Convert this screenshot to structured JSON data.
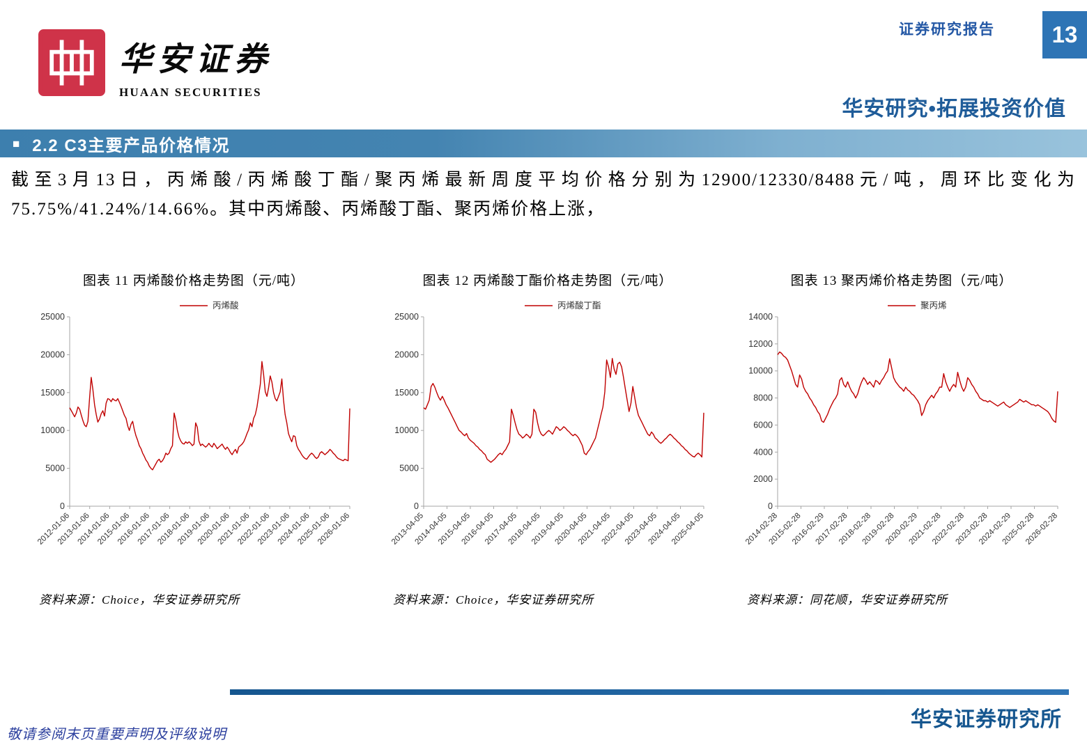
{
  "header": {
    "logo_cn": "华安证券",
    "logo_en": "HUAAN SECURITIES",
    "report_type": "证券研究报告",
    "page_number": "13",
    "tagline": "华安研究•拓展投资价值"
  },
  "section": {
    "bullet": "■",
    "title": "2.2 C3主要产品价格情况"
  },
  "body": {
    "paragraph": "截至3月13日，丙烯酸/丙烯酸丁酯/聚丙烯最新周度平均价格分别为12900/12330/8488元/吨，周环比变化为75.75%/41.24%/14.66%。其中丙烯酸、丙烯酸丁酯、聚丙烯价格上涨，"
  },
  "figures": [
    {
      "title": "图表 11 丙烯酸价格走势图（元/吨）",
      "source": "资料来源：Choice，华安证券研究所"
    },
    {
      "title": "图表 12 丙烯酸丁酯价格走势图（元/吨）",
      "source": "资料来源：Choice，华安证券研究所"
    },
    {
      "title": "图表 13 聚丙烯价格走势图（元/吨）",
      "source": "资料来源：同花顺，华安证券研究所"
    }
  ],
  "footer": {
    "disclaimer": "敬请参阅末页重要声明及评级说明",
    "institute": "华安证券研究所"
  },
  "colors": {
    "line_red": "#c00000",
    "logo_red": "#cf3349",
    "page_number_bg": "#2e74b5",
    "title_blue": "#1f5c99",
    "bar_blue_dark": "#3d7fae",
    "bar_blue_light": "#99c3dc"
  },
  "chart_data": [
    {
      "type": "line",
      "title": "图表 11 丙烯酸价格走势图（元/吨）",
      "legend": "丙烯酸",
      "color": "#c00000",
      "xlabel": "",
      "ylabel": "",
      "ylim": [
        0,
        25000
      ],
      "yticks": [
        0,
        5000,
        10000,
        15000,
        20000,
        25000
      ],
      "xticklabels": [
        "2012-01-06",
        "2013-01-06",
        "2014-01-06",
        "2015-01-06",
        "2016-01-06",
        "2017-01-06",
        "2018-01-06",
        "2019-01-06",
        "2020-01-06",
        "2021-01-06",
        "2022-01-06",
        "2023-01-06",
        "2024-01-06",
        "2025-01-06",
        "2026-01-06"
      ],
      "values": [
        13000,
        12600,
        12200,
        11800,
        12300,
        13100,
        12800,
        12000,
        11300,
        10700,
        10500,
        11200,
        14200,
        17000,
        15400,
        13400,
        12100,
        11100,
        11500,
        12200,
        12600,
        11900,
        13600,
        14200,
        14100,
        13800,
        14200,
        14000,
        13900,
        14200,
        13700,
        13200,
        12600,
        12000,
        11600,
        10600,
        10000,
        10800,
        11200,
        10100,
        9300,
        8700,
        8000,
        7600,
        7000,
        6600,
        6100,
        5800,
        5300,
        5000,
        4800,
        5200,
        5600,
        6000,
        6200,
        5800,
        6000,
        6400,
        7000,
        6800,
        7000,
        7600,
        8000,
        12300,
        11400,
        10000,
        9100,
        8600,
        8300,
        8200,
        8500,
        8300,
        8500,
        8300,
        8000,
        8200,
        11000,
        10400,
        8600,
        8000,
        8200,
        8000,
        7800,
        8000,
        8300,
        8000,
        7800,
        8300,
        8000,
        7600,
        7800,
        8000,
        8200,
        7800,
        7500,
        7800,
        7500,
        7100,
        6800,
        7200,
        7500,
        7000,
        7800,
        8000,
        8200,
        8500,
        9000,
        9600,
        10100,
        11000,
        10500,
        11600,
        12100,
        13100,
        14600,
        16100,
        19100,
        17400,
        15100,
        14500,
        15600,
        17200,
        16400,
        15000,
        14200,
        13900,
        14500,
        15100,
        16800,
        14000,
        12100,
        11000,
        9600,
        9000,
        8500,
        9300,
        9200,
        8000,
        7500,
        7200,
        6800,
        6500,
        6300,
        6200,
        6500,
        6800,
        7000,
        6800,
        6500,
        6300,
        6500,
        7000,
        7200,
        7000,
        6800,
        7000,
        7200,
        7500,
        7300,
        7000,
        6800,
        6500,
        6300,
        6200,
        6100,
        6000,
        6200,
        6100,
        6000,
        12900
      ]
    },
    {
      "type": "line",
      "title": "图表 12 丙烯酸丁酯价格走势图（元/吨）",
      "legend": "丙烯酸丁酯",
      "color": "#c00000",
      "xlabel": "",
      "ylabel": "",
      "ylim": [
        0,
        25000
      ],
      "yticks": [
        0,
        5000,
        10000,
        15000,
        20000,
        25000
      ],
      "xticklabels": [
        "2013-04-05",
        "2014-04-05",
        "2015-04-05",
        "2016-04-05",
        "2017-04-05",
        "2018-04-05",
        "2019-04-05",
        "2020-04-05",
        "2021-04-05",
        "2022-04-05",
        "2023-04-05",
        "2024-04-05",
        "2025-04-05"
      ],
      "values": [
        13000,
        12800,
        13400,
        14000,
        15800,
        16200,
        15700,
        15000,
        14400,
        14000,
        14500,
        14000,
        13400,
        13000,
        12500,
        12000,
        11500,
        11000,
        10500,
        10000,
        9800,
        9500,
        9300,
        9600,
        9000,
        8700,
        8500,
        8300,
        8000,
        7800,
        7500,
        7300,
        7000,
        6800,
        6200,
        6000,
        5800,
        6000,
        6200,
        6500,
        6800,
        7000,
        6800,
        7200,
        7500,
        8000,
        8500,
        12800,
        12000,
        11000,
        10100,
        9500,
        9300,
        9000,
        9200,
        9500,
        9300,
        9000,
        9500,
        12800,
        12400,
        11000,
        10000,
        9500,
        9300,
        9500,
        9800,
        10000,
        9800,
        9500,
        10000,
        10500,
        10300,
        10000,
        10200,
        10500,
        10300,
        10000,
        9800,
        9500,
        9300,
        9500,
        9300,
        9000,
        8500,
        8000,
        7000,
        6800,
        7200,
        7500,
        8000,
        8500,
        9000,
        10000,
        11000,
        12100,
        13100,
        15100,
        19300,
        18400,
        17000,
        19500,
        18100,
        17400,
        18800,
        19000,
        18400,
        17000,
        15500,
        14000,
        12500,
        13600,
        15800,
        14400,
        13000,
        12000,
        11500,
        11000,
        10500,
        10000,
        9500,
        9300,
        9800,
        9500,
        9000,
        8800,
        8500,
        8300,
        8500,
        8800,
        9000,
        9300,
        9500,
        9300,
        9000,
        8800,
        8500,
        8300,
        8000,
        7800,
        7500,
        7300,
        7000,
        6800,
        6600,
        6500,
        6800,
        7000,
        6800,
        6500,
        12330
      ]
    },
    {
      "type": "line",
      "title": "图表 13 聚丙烯价格走势图（元/吨）",
      "legend": "聚丙烯",
      "color": "#c00000",
      "xlabel": "",
      "ylabel": "",
      "ylim": [
        0,
        14000
      ],
      "yticks": [
        0,
        2000,
        4000,
        6000,
        8000,
        10000,
        12000,
        14000
      ],
      "xticklabels": [
        "2014-02-28",
        "2015-02-28",
        "2016-02-29",
        "2017-02-28",
        "2018-02-28",
        "2019-02-28",
        "2020-02-29",
        "2021-02-28",
        "2022-02-28",
        "2023-02-28",
        "2024-02-29",
        "2025-02-28",
        "2026-02-28"
      ],
      "values": [
        11200,
        11400,
        11300,
        11100,
        11000,
        10800,
        10400,
        10000,
        9500,
        9000,
        8800,
        9700,
        9400,
        8800,
        8500,
        8300,
        8000,
        7800,
        7500,
        7300,
        7000,
        6800,
        6300,
        6200,
        6500,
        6800,
        7200,
        7500,
        7800,
        8000,
        8300,
        9300,
        9500,
        9000,
        8800,
        9200,
        8800,
        8500,
        8300,
        8000,
        8300,
        8800,
        9200,
        9500,
        9300,
        9000,
        9200,
        9000,
        8800,
        9300,
        9200,
        9000,
        9300,
        9500,
        9800,
        10000,
        10900,
        10200,
        9500,
        9200,
        9000,
        8800,
        8700,
        8500,
        8800,
        8600,
        8500,
        8300,
        8200,
        8000,
        7800,
        7500,
        6700,
        7000,
        7500,
        7800,
        8000,
        8200,
        8000,
        8300,
        8500,
        8800,
        8800,
        9800,
        9200,
        8800,
        8500,
        8800,
        9000,
        8800,
        9900,
        9300,
        8800,
        8500,
        8800,
        9500,
        9300,
        9000,
        8800,
        8500,
        8300,
        8000,
        7900,
        7800,
        7800,
        7700,
        7800,
        7700,
        7600,
        7500,
        7400,
        7500,
        7600,
        7700,
        7500,
        7400,
        7300,
        7400,
        7500,
        7600,
        7700,
        7900,
        7800,
        7700,
        7800,
        7700,
        7600,
        7500,
        7500,
        7400,
        7500,
        7400,
        7300,
        7200,
        7100,
        7000,
        6800,
        6500,
        6300,
        6200,
        8488
      ]
    }
  ]
}
